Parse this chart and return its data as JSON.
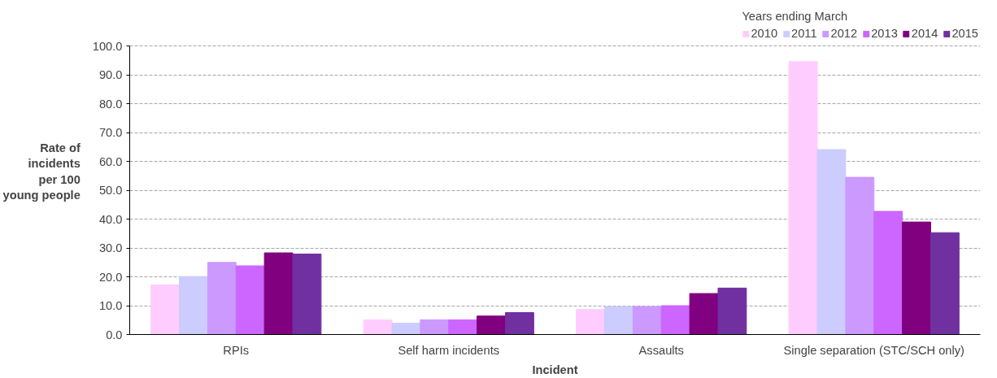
{
  "chart_data": {
    "type": "bar",
    "xlabel": "Incident",
    "ylabel": "Rate of incidents per 100 young people",
    "legend_title": "Years ending March",
    "categories": [
      "RPIs",
      "Self harm incidents",
      "Assaults",
      "Single separation (STC/SCH only)"
    ],
    "series": [
      {
        "name": "2010",
        "color": "#ffccff",
        "values": [
          17.2,
          5.1,
          8.7,
          94.6
        ]
      },
      {
        "name": "2011",
        "color": "#ccccff",
        "values": [
          20.1,
          3.9,
          9.7,
          64.1
        ]
      },
      {
        "name": "2012",
        "color": "#cc99ff",
        "values": [
          25.0,
          5.1,
          9.7,
          54.5
        ]
      },
      {
        "name": "2013",
        "color": "#cc66ff",
        "values": [
          23.8,
          5.1,
          10.0,
          42.7
        ]
      },
      {
        "name": "2014",
        "color": "#800080",
        "values": [
          28.3,
          6.4,
          14.2,
          39.0
        ]
      },
      {
        "name": "2015",
        "color": "#7030a0",
        "values": [
          27.9,
          7.6,
          16.1,
          35.3
        ]
      }
    ],
    "ylim": [
      0,
      100
    ],
    "yticks": [
      {
        "value": 0,
        "label": "0.0"
      },
      {
        "value": 10,
        "label": "10.0"
      },
      {
        "value": 20,
        "label": "20.0"
      },
      {
        "value": 30,
        "label": "30.0"
      },
      {
        "value": 40,
        "label": "40.0"
      },
      {
        "value": 50,
        "label": "50.0"
      },
      {
        "value": 60,
        "label": "60.0"
      },
      {
        "value": 70,
        "label": "70.0"
      },
      {
        "value": 80,
        "label": "80.0"
      },
      {
        "value": 90,
        "label": "90.0"
      },
      {
        "value": 100,
        "label": "100.0"
      }
    ],
    "grid": "y",
    "legend": "top right"
  }
}
